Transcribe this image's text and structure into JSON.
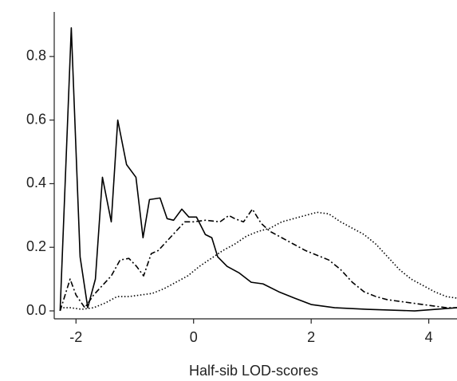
{
  "chart_data": {
    "type": "line",
    "x_label": "Half-sib LOD-scores",
    "xlim": [
      -2.37,
      4.48
    ],
    "ylim": [
      -0.025,
      0.94
    ],
    "xticks": [
      -2,
      0,
      2,
      4
    ],
    "yticks": [
      {
        "value": 0,
        "label": "0.0"
      },
      0.2,
      0.4,
      0.6,
      0.8
    ],
    "series": [
      {
        "color": "#000000",
        "style": "solid",
        "x": [
          -2.27,
          -2.08,
          -1.93,
          -1.8,
          -1.67,
          -1.55,
          -1.4,
          -1.29,
          -1.14,
          -0.98,
          -0.86,
          -0.75,
          -0.57,
          -0.45,
          -0.34,
          -0.2,
          -0.08,
          0.05,
          0.2,
          0.31,
          0.41,
          0.57,
          0.77,
          0.98,
          1.18,
          1.45,
          1.72,
          2.0,
          2.4,
          2.95,
          3.76,
          4.48
        ],
        "values": [
          0,
          0.89,
          0.17,
          0.01,
          0.1,
          0.42,
          0.28,
          0.6,
          0.46,
          0.42,
          0.23,
          0.35,
          0.355,
          0.29,
          0.285,
          0.32,
          0.295,
          0.295,
          0.24,
          0.23,
          0.17,
          0.14,
          0.12,
          0.09,
          0.085,
          0.06,
          0.04,
          0.02,
          0.01,
          0.005,
          0,
          0.01
        ]
      },
      {
        "color": "#000000",
        "style": "dashdot",
        "x": [
          -2.27,
          -2.1,
          -2.0,
          -1.85,
          -1.7,
          -1.55,
          -1.4,
          -1.25,
          -1.1,
          -0.97,
          -0.85,
          -0.72,
          -0.6,
          -0.45,
          -0.3,
          -0.15,
          0,
          0.2,
          0.45,
          0.6,
          0.7,
          0.85,
          1.0,
          1.15,
          1.3,
          1.5,
          1.7,
          1.9,
          2.1,
          2.3,
          2.5,
          2.7,
          2.9,
          3.1,
          3.3,
          3.5,
          3.7,
          3.9,
          4.1,
          4.3,
          4.48
        ],
        "values": [
          0,
          0.1,
          0.05,
          0.01,
          0.05,
          0.08,
          0.11,
          0.16,
          0.165,
          0.14,
          0.11,
          0.18,
          0.19,
          0.22,
          0.25,
          0.28,
          0.28,
          0.285,
          0.28,
          0.3,
          0.29,
          0.28,
          0.32,
          0.275,
          0.25,
          0.23,
          0.21,
          0.19,
          0.175,
          0.16,
          0.13,
          0.09,
          0.06,
          0.045,
          0.035,
          0.03,
          0.025,
          0.02,
          0.015,
          0.01,
          0.01
        ]
      },
      {
        "color": "#000000",
        "style": "dotted",
        "x": [
          -2.27,
          -2.1,
          -1.9,
          -1.7,
          -1.5,
          -1.3,
          -1.1,
          -0.9,
          -0.7,
          -0.5,
          -0.3,
          -0.1,
          0.1,
          0.3,
          0.5,
          0.7,
          0.9,
          1.1,
          1.3,
          1.5,
          1.7,
          1.9,
          2.1,
          2.3,
          2.5,
          2.7,
          2.9,
          3.1,
          3.3,
          3.5,
          3.7,
          3.9,
          4.1,
          4.3,
          4.48
        ],
        "values": [
          0.01,
          0.01,
          0.005,
          0.01,
          0.025,
          0.045,
          0.045,
          0.05,
          0.055,
          0.07,
          0.09,
          0.11,
          0.14,
          0.165,
          0.19,
          0.21,
          0.235,
          0.25,
          0.26,
          0.28,
          0.29,
          0.3,
          0.31,
          0.305,
          0.28,
          0.26,
          0.24,
          0.21,
          0.17,
          0.13,
          0.1,
          0.08,
          0.06,
          0.045,
          0.04
        ]
      }
    ]
  }
}
